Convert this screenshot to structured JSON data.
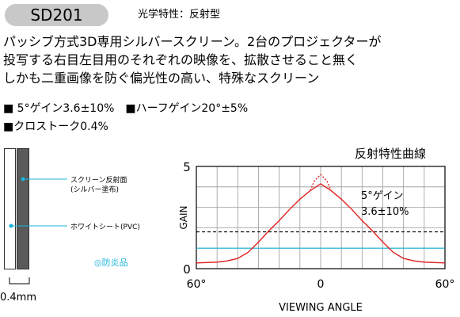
{
  "header": {
    "model": "SD201",
    "subtitle": "光学特性：反射型"
  },
  "description": {
    "lines": [
      "パッシブ方式3D専用シルバースクリーン。2台のプロジェクターが",
      "投写する右目左目用のそれぞれの映像を、拡散させること無く",
      "しかも二重画像を防ぐ偏光性の高い、特殊なスクリーン"
    ]
  },
  "specs": {
    "line1": "■ 5°ゲイン3.6±10%　■ハーフゲイン20°±5%",
    "line2": "■クロストーク0.4%"
  },
  "diagram": {
    "coating_label_1": "スクリーン反射面",
    "coating_label_2": "(シルバー塗布)",
    "sheet_label": "ホワイトシート(PVC)",
    "fireproof": "◎防炎品",
    "thickness": "0.4mm",
    "colors": {
      "leader": "#1ab3d9",
      "dark_layer": "#5a5a5a"
    }
  },
  "chart_data": {
    "type": "line",
    "title": "反射特性曲線",
    "xlabel": "VIEWING ANGLE",
    "ylabel": "GAIN",
    "xlim": [
      -60,
      60
    ],
    "ylim": [
      0,
      5
    ],
    "x_ticks": [
      {
        "value": -60,
        "label": "60°"
      },
      {
        "value": 0,
        "label": "0"
      },
      {
        "value": 60,
        "label": "60°"
      }
    ],
    "y_ticks": [
      {
        "value": 0,
        "label": "0"
      },
      {
        "value": 5,
        "label": "5"
      }
    ],
    "grid": true,
    "series": [
      {
        "style": "solid",
        "color": "#e02020",
        "x": [
          -60,
          -50,
          -45,
          -40,
          -35,
          -30,
          -25,
          -20,
          -15,
          -10,
          -5,
          0,
          5,
          10,
          15,
          20,
          25,
          30,
          35,
          40,
          45,
          50,
          60
        ],
        "y": [
          0.28,
          0.32,
          0.38,
          0.5,
          0.8,
          1.3,
          1.85,
          2.35,
          2.9,
          3.4,
          3.82,
          4.15,
          3.82,
          3.4,
          2.9,
          2.35,
          1.85,
          1.3,
          0.8,
          0.5,
          0.38,
          0.32,
          0.28
        ]
      },
      {
        "style": "dotted",
        "color": "#e02020",
        "x": [
          -5,
          -3,
          0,
          3,
          5
        ],
        "y": [
          3.82,
          4.3,
          4.6,
          4.3,
          3.82
        ]
      }
    ],
    "reference_lines": [
      {
        "y": 1.8,
        "style": "dashed",
        "color": "#000000"
      },
      {
        "y": 1.0,
        "style": "solid",
        "color": "#1ab3d9"
      }
    ],
    "annotation": {
      "line1": "5°ゲイン",
      "line2": "3.6±10%"
    }
  }
}
